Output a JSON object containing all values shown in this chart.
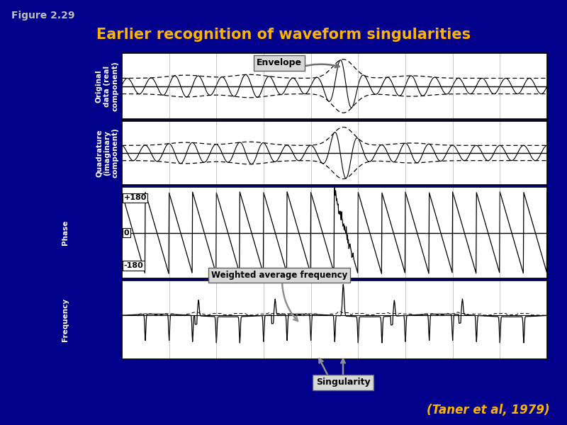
{
  "title": "Earlier recognition of waveform singularities",
  "figure_label": "Figure 2.29",
  "citation": "(Taner et al, 1979)",
  "bg_color": "#00008B",
  "title_color": "#FFB300",
  "figure_label_color": "#C0C0C0",
  "citation_color": "#FFB300",
  "labels": {
    "panel1": "Original\ndata (real\ncomponent)",
    "panel2": "Quadrature\n(imaginary\ncomponent)",
    "panel3": "Phase",
    "panel4": "Frequency"
  },
  "phase_labels": [
    "+180",
    "0",
    "-180"
  ],
  "annotation_envelope": "Envelope",
  "annotation_waf": "Weighted average frequency",
  "annotation_sing": "Singularity",
  "n_points": 1000,
  "grid_cols": 9
}
